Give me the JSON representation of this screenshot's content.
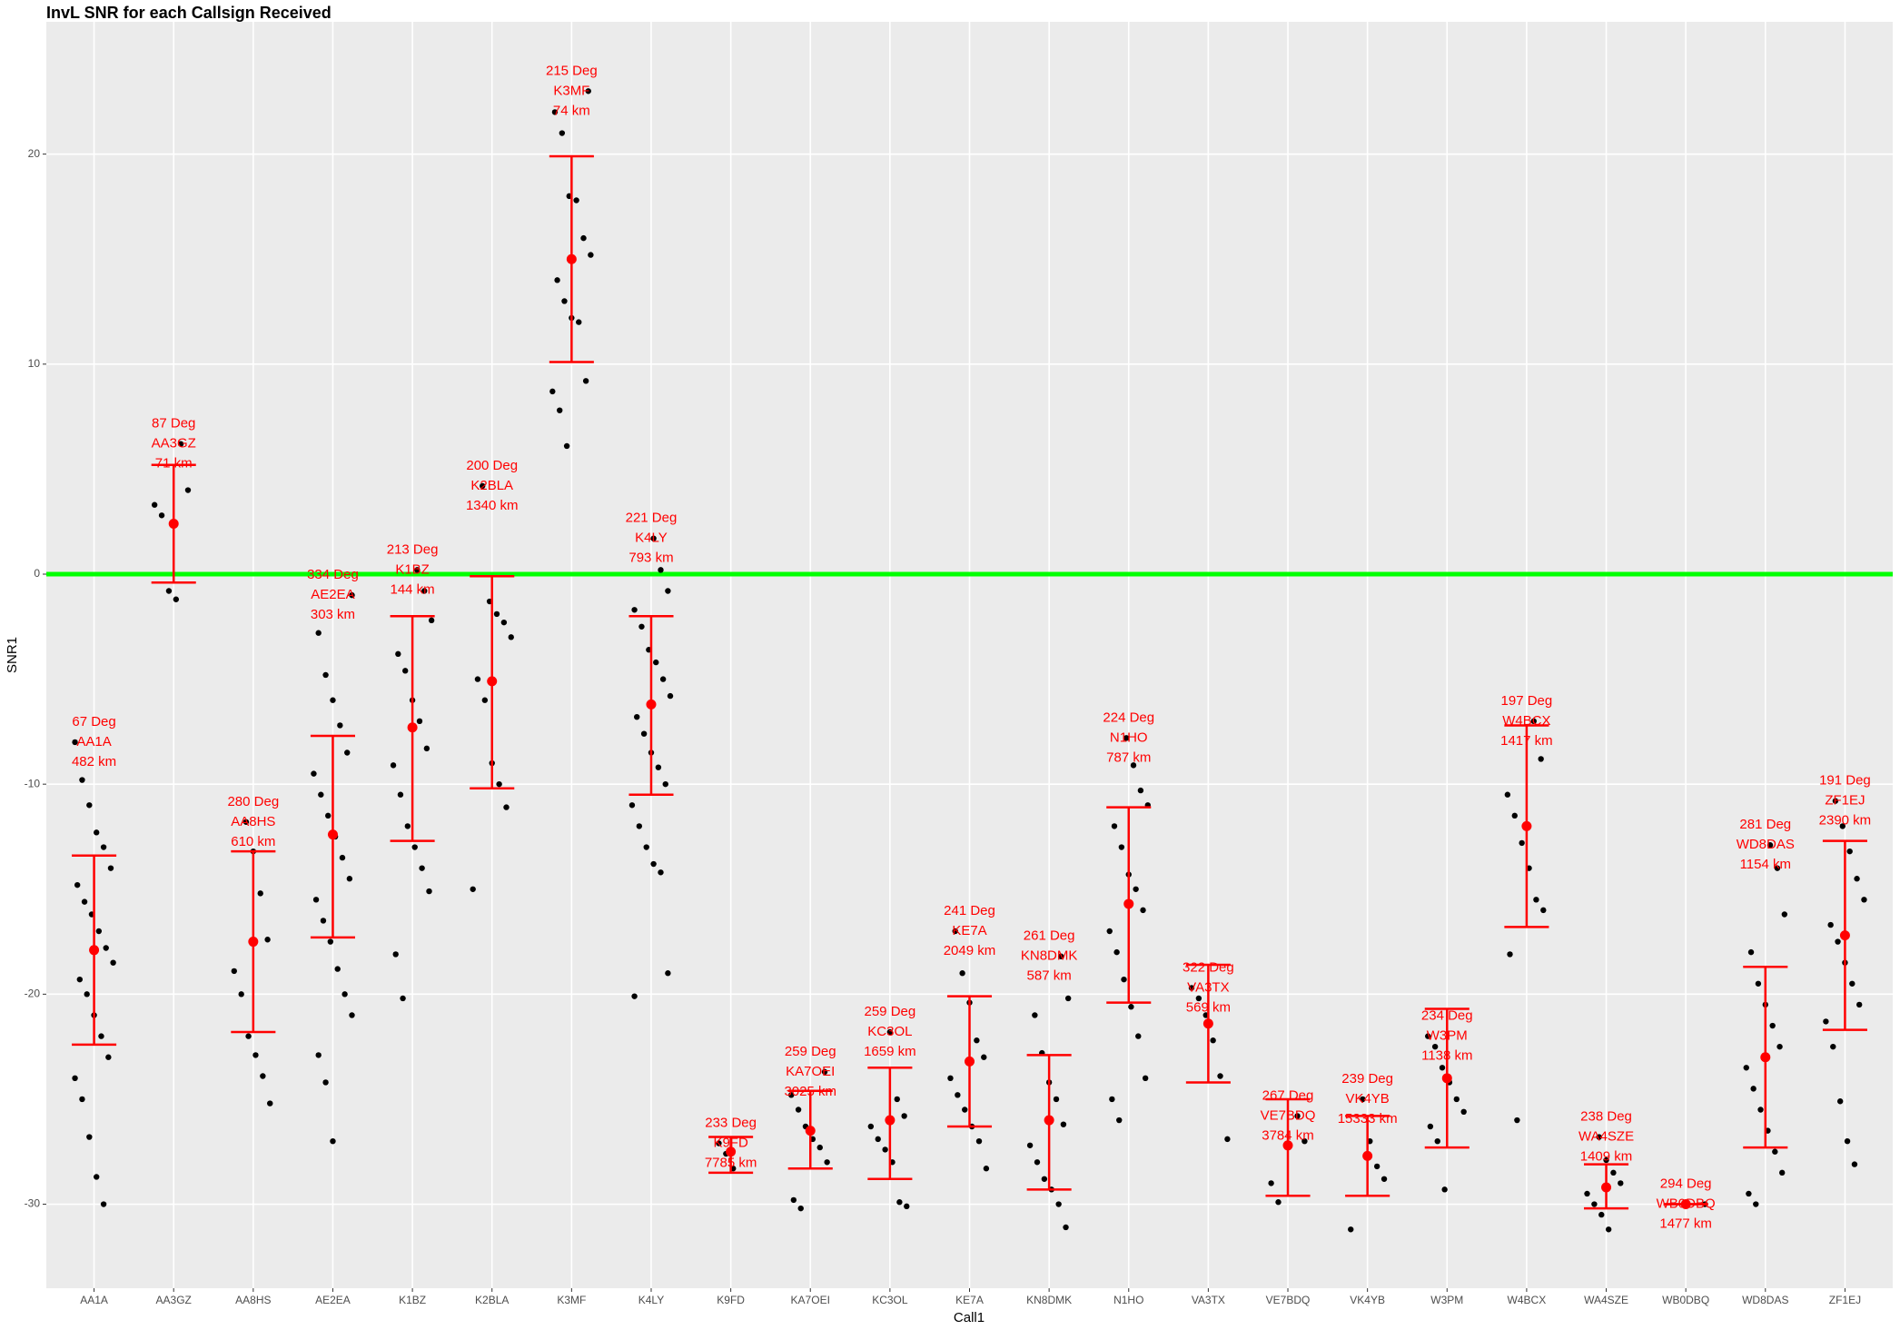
{
  "chart_data": {
    "type": "errorbar",
    "title": "InvL SNR for each Callsign Received",
    "xlabel": "Call1",
    "ylabel": "SNR1",
    "categories": [
      "AA1A",
      "AA3GZ",
      "AA8HS",
      "AE2EA",
      "K1BZ",
      "K2BLA",
      "K3MF",
      "K4LY",
      "K9FD",
      "KA7OEI",
      "KC3OL",
      "KE7A",
      "KN8DMK",
      "N1HO",
      "VA3TX",
      "VE7BDQ",
      "VK4YB",
      "W3PM",
      "W4BCX",
      "WA4SZE",
      "WB0DBQ",
      "WD8DAS",
      "ZF1EJ"
    ],
    "mean": [
      -17.9,
      2.4,
      -17.5,
      -12.4,
      -7.3,
      -5.1,
      15.0,
      -6.2,
      -27.5,
      -26.5,
      -26.0,
      -23.2,
      -26.0,
      -15.7,
      -21.4,
      -27.2,
      -27.7,
      -24.0,
      -12.0,
      -29.2,
      -30.0,
      -23.0,
      -17.2
    ],
    "lower": [
      -22.4,
      -0.4,
      -21.8,
      -17.3,
      -12.7,
      -10.2,
      10.1,
      -10.5,
      -28.5,
      -28.3,
      -28.8,
      -26.3,
      -29.3,
      -20.4,
      -24.2,
      -29.6,
      -29.6,
      -27.3,
      -16.8,
      -30.2,
      -30.0,
      -27.3,
      -21.7
    ],
    "upper": [
      -13.4,
      5.2,
      -13.2,
      -7.7,
      -2.0,
      -0.1,
      19.9,
      -2.0,
      -26.8,
      -24.6,
      -23.5,
      -20.1,
      -22.9,
      -11.1,
      -18.6,
      -25.0,
      -25.8,
      -20.7,
      -7.2,
      -28.1,
      -30.0,
      -18.7,
      -12.7
    ],
    "points": [
      [
        -8,
        -9.8,
        -11,
        -12.3,
        -13,
        -14,
        -14.8,
        -15.6,
        -16.2,
        -17,
        -17.8,
        -18.5,
        -19.3,
        -20,
        -21,
        -22,
        -23,
        -24,
        -25,
        -26.8,
        -28.7,
        -30
      ],
      [
        6.2,
        4,
        3.3,
        2.8,
        -0.8,
        -1.2
      ],
      [
        -11.8,
        -13.2,
        -15.2,
        -17.4,
        -18.9,
        -20,
        -22,
        -22.9,
        -23.9,
        -25.2
      ],
      [
        -1,
        -2.8,
        -4.8,
        -6,
        -7.2,
        -8.5,
        -9.5,
        -10.5,
        -11.5,
        -12.5,
        -13.5,
        -14.5,
        -15.5,
        -16.5,
        -17.5,
        -18.8,
        -20,
        -21,
        -22.9,
        -24.2,
        -27
      ],
      [
        0.2,
        -0.8,
        -2.2,
        -3.8,
        -4.6,
        -6,
        -7,
        -8.3,
        -9.1,
        -10.5,
        -12,
        -13,
        -14,
        -15.1,
        -18.1,
        -20.2
      ],
      [
        4.2,
        -1.3,
        -1.9,
        -2.3,
        -3,
        -5,
        -6,
        -9,
        -10,
        -11.1,
        -15
      ],
      [
        23,
        22,
        21,
        18,
        17.8,
        16,
        15.2,
        14,
        13,
        12.2,
        12,
        9.2,
        8.7,
        7.8,
        6.1
      ],
      [
        1.7,
        0.2,
        -0.8,
        -1.7,
        -2.5,
        -3.6,
        -4.2,
        -5,
        -5.8,
        -6.8,
        -7.6,
        -8.5,
        -9.2,
        -10,
        -11,
        -12,
        -13,
        -13.8,
        -14.2,
        -19,
        -20.1
      ],
      [
        -27.1,
        -27.6,
        -28.3
      ],
      [
        -23.7,
        -24.8,
        -25.5,
        -26.3,
        -26.9,
        -27.3,
        -28,
        -29.8,
        -30.2
      ],
      [
        -21.8,
        -25,
        -25.8,
        -26.3,
        -26.9,
        -27.4,
        -28,
        -29.9,
        -30.1
      ],
      [
        -17,
        -19,
        -20.4,
        -22.2,
        -23,
        -24,
        -24.8,
        -25.5,
        -26.3,
        -27,
        -28.3
      ],
      [
        -18.2,
        -20.2,
        -21,
        -22.8,
        -24.2,
        -25,
        -26.2,
        -27.2,
        -28,
        -28.8,
        -29.3,
        -30,
        -31.1
      ],
      [
        -7.8,
        -9.1,
        -10.3,
        -11,
        -12,
        -13,
        -14.3,
        -15,
        -16,
        -17,
        -18,
        -19.3,
        -20.6,
        -22,
        -24,
        -25,
        -26
      ],
      [
        -19.7,
        -20.2,
        -21,
        -22.2,
        -23.9,
        -26.9
      ],
      [
        -25.8,
        -27,
        -29,
        -29.9
      ],
      [
        -25,
        -27,
        -28.2,
        -28.8,
        -31.2
      ],
      [
        -22,
        -22.5,
        -23.5,
        -24.2,
        -25,
        -25.6,
        -26.3,
        -27,
        -29.3
      ],
      [
        -7,
        -8.8,
        -10.5,
        -11.5,
        -12.8,
        -14,
        -15.5,
        -16,
        -18.1,
        -26
      ],
      [
        -26.8,
        -27.9,
        -28.5,
        -29,
        -29.5,
        -30,
        -30.5,
        -31.2
      ],
      [
        -30
      ],
      [
        -12.9,
        -14,
        -16.2,
        -18,
        -19.5,
        -20.5,
        -21.5,
        -22.5,
        -23.5,
        -24.5,
        -25.5,
        -26.5,
        -27.5,
        -28.5,
        -29.5,
        -30
      ],
      [
        -10.8,
        -12,
        -13.2,
        -14.5,
        -15.5,
        -16.7,
        -17.5,
        -18.5,
        -19.5,
        -20.5,
        -21.3,
        -22.5,
        -25.1,
        -27,
        -28.1
      ]
    ],
    "labels": [
      [
        "67 Deg",
        "AA1A",
        "482 km"
      ],
      [
        "87 Deg",
        "AA3GZ",
        "71 km"
      ],
      [
        "280 Deg",
        "AA8HS",
        "610 km"
      ],
      [
        "334 Deg",
        "AE2EA",
        "303 km"
      ],
      [
        "213 Deg",
        "K1BZ",
        "144 km"
      ],
      [
        "200 Deg",
        "K2BLA",
        "1340 km"
      ],
      [
        "215 Deg",
        "K3MF",
        "74 km"
      ],
      [
        "221 Deg",
        "K4LY",
        "793 km"
      ],
      [
        "233 Deg",
        "K9FD",
        "7785 km"
      ],
      [
        "259 Deg",
        "KA7OEI",
        "3025 km"
      ],
      [
        "259 Deg",
        "KC3OL",
        "1659 km"
      ],
      [
        "241 Deg",
        "KE7A",
        "2049 km"
      ],
      [
        "261 Deg",
        "KN8DMK",
        "587 km"
      ],
      [
        "224 Deg",
        "N1HO",
        "787 km"
      ],
      [
        "322 Deg",
        "VA3TX",
        "569 km"
      ],
      [
        "267 Deg",
        "VE7BDQ",
        "3784 km"
      ],
      [
        "239 Deg",
        "VK4YB",
        "15333 km"
      ],
      [
        "234 Deg",
        "W3PM",
        "1138 km"
      ],
      [
        "197 Deg",
        "W4BCX",
        "1417 km"
      ],
      [
        "238 Deg",
        "WA4SZE",
        "1409 km"
      ],
      [
        "294 Deg",
        "WB0DBQ",
        "1477 km"
      ],
      [
        "281 Deg",
        "WD8DAS",
        "1154 km"
      ],
      [
        "191 Deg",
        "ZF1EJ",
        "2390 km"
      ]
    ],
    "point_color": "#000000",
    "mean_color": "#ff0000",
    "bar_color": "#ff0000",
    "label_color": "#ff0000",
    "hline": 0,
    "hline_color": "#00ff00",
    "ylim": [
      -34,
      26.3
    ],
    "yticks": [
      -30,
      -20,
      -10,
      0,
      10,
      20
    ],
    "grid": true
  }
}
